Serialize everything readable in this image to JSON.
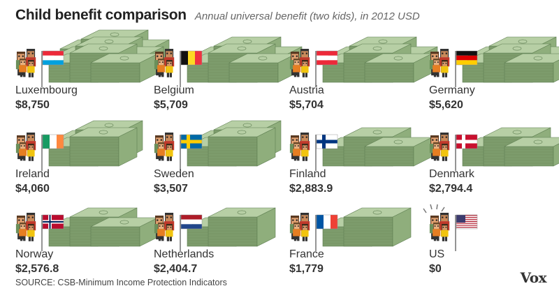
{
  "header": {
    "title": "Child benefit comparison",
    "subtitle": "Annual universal benefit (two kids), in 2012 USD"
  },
  "footer": {
    "source": "SOURCE: CSB-Minimum Income Protection Indicators",
    "logo": "Vox"
  },
  "colors": {
    "cash_top": "#b7cfa5",
    "cash_side": "#8fae7c",
    "cash_front": "#7d9c6c",
    "cash_line": "#5f7f52",
    "text": "#333333"
  },
  "chart_data": {
    "type": "pictograph",
    "title": "Child benefit comparison",
    "subtitle": "Annual universal benefit (two kids), in 2012 USD",
    "unit": "2012 USD",
    "items": [
      {
        "country": "Luxembourg",
        "value": 8750,
        "label": "$8,750",
        "flag": "luxembourg"
      },
      {
        "country": "Belgium",
        "value": 5709,
        "label": "$5,709",
        "flag": "belgium"
      },
      {
        "country": "Austria",
        "value": 5704,
        "label": "$5,704",
        "flag": "austria"
      },
      {
        "country": "Germany",
        "value": 5620,
        "label": "$5,620",
        "flag": "germany"
      },
      {
        "country": "Ireland",
        "value": 4060,
        "label": "$4,060",
        "flag": "ireland"
      },
      {
        "country": "Sweden",
        "value": 3507,
        "label": "$3,507",
        "flag": "sweden"
      },
      {
        "country": "Finland",
        "value": 2883.9,
        "label": "$2,883.9",
        "flag": "finland"
      },
      {
        "country": "Denmark",
        "value": 2794.4,
        "label": "$2,794.4",
        "flag": "denmark"
      },
      {
        "country": "Norway",
        "value": 2576.8,
        "label": "$2,576.8",
        "flag": "norway"
      },
      {
        "country": "Netherlands",
        "value": 2404.7,
        "label": "$2,404.7",
        "flag": "netherlands"
      },
      {
        "country": "France",
        "value": 1779,
        "label": "$1,779",
        "flag": "france"
      },
      {
        "country": "US",
        "value": 0,
        "label": "$0",
        "flag": "us"
      }
    ]
  }
}
